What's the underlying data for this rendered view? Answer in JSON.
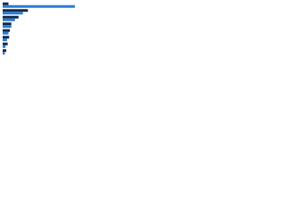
{
  "chart_data": {
    "type": "hbar",
    "categories": [
      null,
      null,
      null,
      null,
      null,
      null,
      null,
      null
    ],
    "series": [
      {
        "color": "#13294b",
        "values": [
          8,
          35,
          22,
          12,
          10,
          9,
          7,
          5
        ]
      },
      {
        "color": "#2b7bd3",
        "values": [
          100,
          28,
          17,
          12,
          8,
          6,
          4,
          3
        ]
      }
    ],
    "xlim": [
      0,
      100
    ]
  }
}
